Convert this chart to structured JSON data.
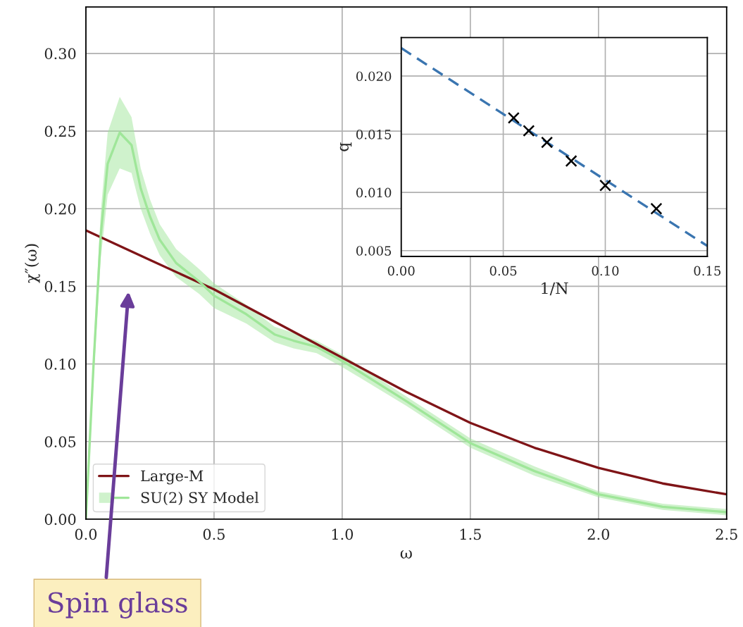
{
  "chart_data": [
    {
      "type": "line",
      "xlabel": "ω",
      "ylabel": "χ″(ω)",
      "xlim": [
        0,
        2.5
      ],
      "ylim": [
        0,
        0.33
      ],
      "xticks": [
        {
          "value": 0,
          "label": "0.0"
        },
        0.5,
        {
          "value": 1,
          "label": "1.0"
        },
        1.5,
        {
          "value": 2,
          "label": "2.0"
        },
        2.5
      ],
      "yticks": [
        {
          "value": 0,
          "label": "0.00"
        },
        {
          "value": 0.05,
          "label": "0.05"
        },
        {
          "value": 0.1,
          "label": "0.10"
        },
        {
          "value": 0.15,
          "label": "0.15"
        },
        {
          "value": 0.2,
          "label": "0.20"
        },
        {
          "value": 0.25,
          "label": "0.25"
        },
        {
          "value": 0.3,
          "label": "0.30"
        }
      ],
      "grid": true,
      "legend": "bottom left",
      "series": [
        {
          "name": "Large-M",
          "color": "#7f1417",
          "x": [
            0,
            0.25,
            0.5,
            0.75,
            1.0,
            1.25,
            1.5,
            1.75,
            2.0,
            2.25,
            2.5
          ],
          "values": [
            0.186,
            0.167,
            0.148,
            0.126,
            0.104,
            0.082,
            0.062,
            0.046,
            0.033,
            0.023,
            0.016
          ]
        },
        {
          "name": "SU(2) SY Model",
          "color": "#9fe699",
          "x": [
            0,
            0.03,
            0.058,
            0.085,
            0.132,
            0.178,
            0.214,
            0.25,
            0.288,
            0.352,
            0.443,
            0.5,
            0.626,
            0.736,
            0.81,
            0.9,
            1.0,
            1.25,
            1.5,
            1.75,
            2.0,
            2.25,
            2.5
          ],
          "values": [
            0,
            0.1,
            0.183,
            0.229,
            0.249,
            0.241,
            0.213,
            0.195,
            0.18,
            0.165,
            0.153,
            0.144,
            0.132,
            0.119,
            0.115,
            0.111,
            0.102,
            0.076,
            0.049,
            0.031,
            0.016,
            0.008,
            0.0045
          ],
          "lower": [
            0,
            0.09,
            0.168,
            0.209,
            0.226,
            0.223,
            0.2,
            0.184,
            0.17,
            0.156,
            0.145,
            0.136,
            0.126,
            0.114,
            0.11,
            0.107,
            0.098,
            0.073,
            0.046,
            0.028,
            0.014,
            0.006,
            0.0025
          ],
          "upper": [
            0,
            0.11,
            0.198,
            0.249,
            0.272,
            0.259,
            0.226,
            0.206,
            0.19,
            0.174,
            0.161,
            0.152,
            0.138,
            0.124,
            0.12,
            0.115,
            0.106,
            0.079,
            0.052,
            0.034,
            0.018,
            0.01,
            0.0065
          ]
        }
      ],
      "annotations": [
        "Spin glass"
      ]
    },
    {
      "type": "scatter",
      "xlabel": "1/N",
      "ylabel": "q",
      "xlim": [
        0,
        0.15
      ],
      "ylim": [
        0.0045,
        0.0233
      ],
      "xticks": [
        {
          "value": 0,
          "label": "0.00"
        },
        {
          "value": 0.05,
          "label": "0.05"
        },
        {
          "value": 0.1,
          "label": "0.10"
        },
        {
          "value": 0.15,
          "label": "0.15"
        }
      ],
      "yticks": [
        {
          "value": 0.005,
          "label": "0.005"
        },
        {
          "value": 0.01,
          "label": "0.010"
        },
        {
          "value": 0.015,
          "label": "0.015"
        },
        {
          "value": 0.02,
          "label": "0.020"
        }
      ],
      "grid": true,
      "series": [
        {
          "type": "line",
          "line_style": "dashed",
          "color": "#3a75b0",
          "x": [
            0,
            0.15
          ],
          "values": [
            0.0224,
            0.0054
          ]
        },
        {
          "type": "scatter",
          "marker": "cross",
          "color": "#000000",
          "x": [
            0.0551,
            0.0625,
            0.0714,
            0.0833,
            0.1,
            0.125
          ],
          "values": [
            0.0164,
            0.0153,
            0.0143,
            0.0127,
            0.0106,
            0.0086
          ]
        }
      ]
    }
  ]
}
